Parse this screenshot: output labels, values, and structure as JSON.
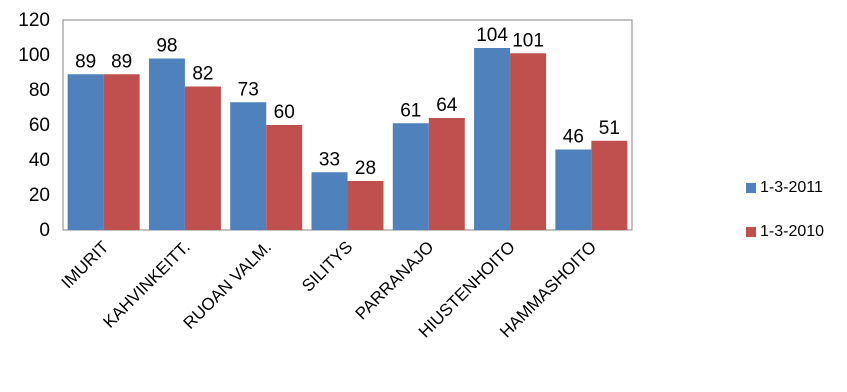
{
  "chart_data": {
    "type": "bar",
    "title": "",
    "xlabel": "",
    "ylabel": "",
    "categories": [
      "IMURIT",
      "KAHVINKEITT.",
      "RUOAN VALM.",
      "SILITYS",
      "PARRANAJO",
      "HIUSTENHOITO",
      "HAMMASHOITO"
    ],
    "series": [
      {
        "name": "1-3-2011",
        "color": "#4f81bd",
        "values": [
          89,
          98,
          73,
          33,
          61,
          104,
          46
        ]
      },
      {
        "name": "1-3-2010",
        "color": "#c0504d",
        "values": [
          89,
          82,
          60,
          28,
          64,
          101,
          51
        ]
      }
    ],
    "ylim": [
      0,
      120
    ],
    "yticks": [
      0,
      20,
      40,
      60,
      80,
      100,
      120
    ],
    "grid": false,
    "legend_position": "right",
    "data_labels": true
  }
}
